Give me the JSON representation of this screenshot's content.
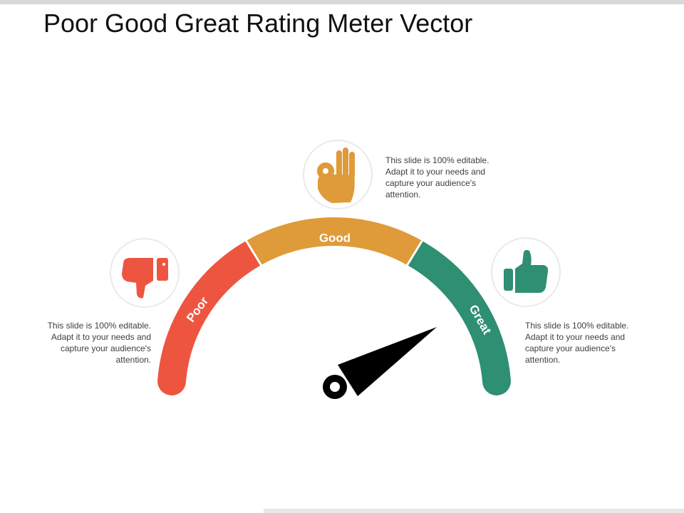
{
  "title": "Poor Good Great Rating Meter Vector",
  "segments": [
    {
      "label": "Poor",
      "color": "#ee5540"
    },
    {
      "label": "Good",
      "color": "#df9a39"
    },
    {
      "label": "Great",
      "color": "#2e8f72"
    }
  ],
  "icons": {
    "poor": "thumbs-down-icon",
    "good": "ok-hand-icon",
    "great": "thumbs-up-icon"
  },
  "captions": {
    "poor": "This slide is 100% editable. Adapt it to your needs and capture your audience's attention.",
    "good": "This slide is 100% editable. Adapt it to your needs and capture your audience's attention.",
    "great": "This slide is 100% editable. Adapt it to your needs and capture your audience's attention."
  },
  "needle_color": "#000000"
}
